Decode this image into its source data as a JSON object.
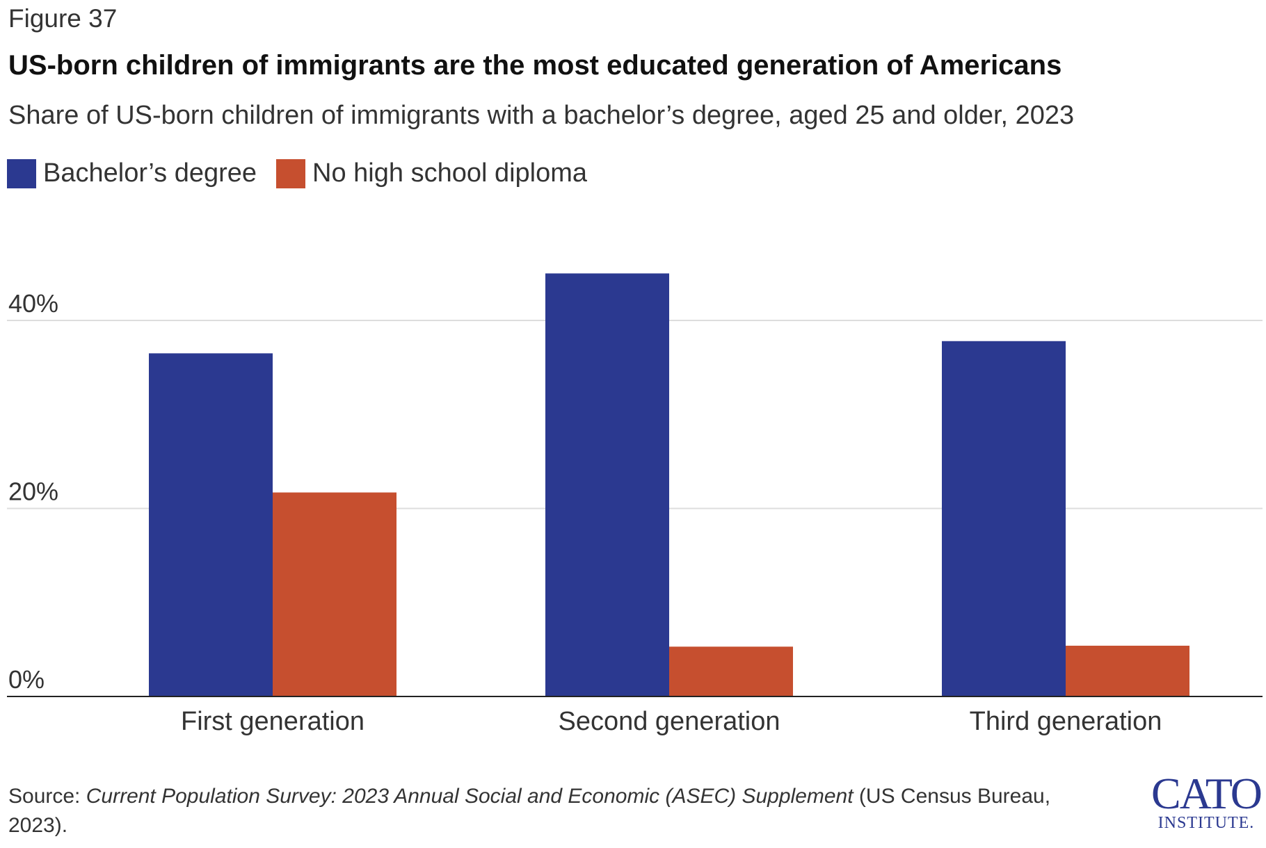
{
  "figure_label": "Figure 37",
  "legend": [
    {
      "label": "Bachelor’s degree",
      "color": "#2b3990"
    },
    {
      "label": "No high school diploma",
      "color": "#c64f2f"
    }
  ],
  "source": {
    "prefix": "Source: ",
    "title": "Current Population Survey: 2023 Annual Social and Economic (ASEC) Supplement",
    "suffix": " (US Census Bureau, 2023)."
  },
  "logo": {
    "main": "CATO",
    "sub": "INSTITUTE."
  },
  "chart_data": {
    "type": "bar",
    "title": "US-born children of immigrants are the most educated generation of Americans",
    "subtitle": "Share of US-born children of immigrants with a bachelor’s degree, aged 25 and older, 2023",
    "categories": [
      "First generation",
      "Second generation",
      "Third generation"
    ],
    "series": [
      {
        "name": "Bachelor’s degree",
        "color": "#2b3990",
        "values": [
          36.5,
          45.0,
          37.8
        ]
      },
      {
        "name": "No high school diploma",
        "color": "#c64f2f",
        "values": [
          21.7,
          5.3,
          5.4
        ]
      }
    ],
    "ylim": [
      0,
      45
    ],
    "yticks": [
      0,
      20,
      40
    ],
    "ytick_labels": [
      "0%",
      "20%",
      "40%"
    ],
    "xlabel": "",
    "ylabel": "",
    "grid": true,
    "legend_position": "top-left"
  }
}
